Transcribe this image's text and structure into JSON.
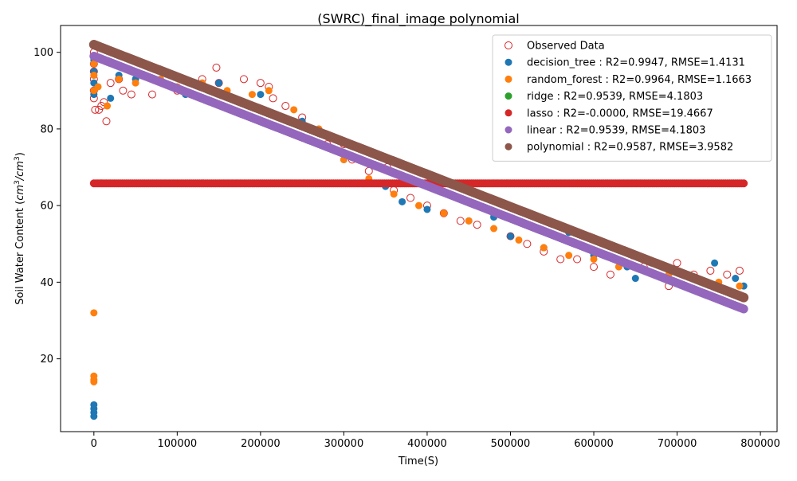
{
  "chart_data": {
    "type": "scatter",
    "title": "(SWRC)_final_image polynomial",
    "xlabel": "Time(S)",
    "ylabel_main": "Soil Water Content (",
    "ylabel_unit": "cm",
    "ylabel_exp1": "3",
    "ylabel_sep": "/",
    "ylabel_unit2": "cm",
    "ylabel_exp2": "3",
    "ylabel_close": ")",
    "xlim": [
      -40000,
      820000
    ],
    "ylim": [
      1,
      107
    ],
    "x_ticks": [
      0,
      100000,
      200000,
      300000,
      400000,
      500000,
      600000,
      700000,
      800000
    ],
    "x_tick_labels": [
      "0",
      "100000",
      "200000",
      "300000",
      "400000",
      "500000",
      "600000",
      "700000",
      "800000"
    ],
    "y_ticks": [
      20,
      40,
      60,
      80,
      100
    ],
    "y_tick_labels": [
      "20",
      "40",
      "60",
      "80",
      "100"
    ],
    "grid": false,
    "legend_position": "top-right",
    "series": [
      {
        "name": "Observed Data",
        "marker": "open-circle",
        "color": "#d62728",
        "points": [
          [
            0,
            102
          ],
          [
            0,
            100
          ],
          [
            0,
            97
          ],
          [
            0,
            95
          ],
          [
            0,
            93
          ],
          [
            0,
            90
          ],
          [
            0,
            88
          ],
          [
            1500,
            85
          ],
          [
            6000,
            85
          ],
          [
            9000,
            86
          ],
          [
            12000,
            87
          ],
          [
            15000,
            82
          ],
          [
            20000,
            92
          ],
          [
            30000,
            93
          ],
          [
            35000,
            90
          ],
          [
            45000,
            89
          ],
          [
            70000,
            89
          ],
          [
            100000,
            90
          ],
          [
            130000,
            93
          ],
          [
            147000,
            96
          ],
          [
            150000,
            92
          ],
          [
            180000,
            93
          ],
          [
            200000,
            92
          ],
          [
            210000,
            91
          ],
          [
            215000,
            88
          ],
          [
            230000,
            86
          ],
          [
            250000,
            83
          ],
          [
            270000,
            79
          ],
          [
            280000,
            76
          ],
          [
            300000,
            76
          ],
          [
            310000,
            72
          ],
          [
            330000,
            69
          ],
          [
            352000,
            70
          ],
          [
            360000,
            64
          ],
          [
            380000,
            62
          ],
          [
            400000,
            60
          ],
          [
            420000,
            58
          ],
          [
            440000,
            56
          ],
          [
            460000,
            55
          ],
          [
            480000,
            58
          ],
          [
            500000,
            52
          ],
          [
            520000,
            50
          ],
          [
            540000,
            48
          ],
          [
            560000,
            46
          ],
          [
            580000,
            46
          ],
          [
            600000,
            44
          ],
          [
            620000,
            42
          ],
          [
            647000,
            47
          ],
          [
            660000,
            44
          ],
          [
            690000,
            39
          ],
          [
            700000,
            45
          ],
          [
            720000,
            42
          ],
          [
            740000,
            43
          ],
          [
            760000,
            42
          ],
          [
            775000,
            43
          ]
        ]
      },
      {
        "name": "decision_tree : R2=0.9947, RMSE=1.4131",
        "marker": "circle",
        "color": "#1f77b4",
        "points": [
          [
            0,
            5
          ],
          [
            0,
            6
          ],
          [
            0,
            7
          ],
          [
            0,
            8
          ],
          [
            0,
            89
          ],
          [
            0,
            92
          ],
          [
            0,
            95
          ],
          [
            0,
            98
          ],
          [
            20000,
            88
          ],
          [
            30000,
            94
          ],
          [
            50000,
            93
          ],
          [
            80000,
            95
          ],
          [
            110000,
            89
          ],
          [
            150000,
            92
          ],
          [
            200000,
            89
          ],
          [
            250000,
            82
          ],
          [
            300000,
            72
          ],
          [
            350000,
            65
          ],
          [
            370000,
            61
          ],
          [
            400000,
            59
          ],
          [
            450000,
            56
          ],
          [
            480000,
            57
          ],
          [
            500000,
            52
          ],
          [
            540000,
            49
          ],
          [
            570000,
            53
          ],
          [
            600000,
            47
          ],
          [
            640000,
            44
          ],
          [
            650000,
            41
          ],
          [
            700000,
            43
          ],
          [
            745000,
            45
          ],
          [
            770000,
            41
          ],
          [
            780000,
            39
          ]
        ]
      },
      {
        "name": "random_forest : R2=0.9964, RMSE=1.1663",
        "marker": "circle",
        "color": "#ff7f0e",
        "points": [
          [
            0,
            32
          ],
          [
            0,
            15.5
          ],
          [
            0,
            14.5
          ],
          [
            0,
            14
          ],
          [
            0,
            90
          ],
          [
            0,
            94
          ],
          [
            0,
            97
          ],
          [
            5000,
            91
          ],
          [
            16000,
            86
          ],
          [
            30000,
            93
          ],
          [
            50000,
            92
          ],
          [
            80000,
            93
          ],
          [
            100000,
            91
          ],
          [
            130000,
            92
          ],
          [
            160000,
            90
          ],
          [
            190000,
            89
          ],
          [
            210000,
            90
          ],
          [
            240000,
            85
          ],
          [
            270000,
            80
          ],
          [
            300000,
            72
          ],
          [
            330000,
            67
          ],
          [
            360000,
            63
          ],
          [
            390000,
            60
          ],
          [
            420000,
            58
          ],
          [
            450000,
            56
          ],
          [
            480000,
            54
          ],
          [
            510000,
            51
          ],
          [
            540000,
            49
          ],
          [
            570000,
            47
          ],
          [
            600000,
            46
          ],
          [
            630000,
            44
          ],
          [
            660000,
            43
          ],
          [
            690000,
            42
          ],
          [
            720000,
            41
          ],
          [
            750000,
            40
          ],
          [
            775000,
            39
          ]
        ]
      },
      {
        "name": "ridge : R2=0.9539, RMSE=4.1803",
        "marker": "circle",
        "color": "#2ca02c",
        "points": [
          [
            0,
            99
          ],
          [
            780000,
            33
          ]
        ]
      },
      {
        "name": "lasso : R2=-0.0000, RMSE=19.4667",
        "marker": "circle",
        "color": "#d62728",
        "points": [
          [
            0,
            65.8
          ],
          [
            780000,
            65.8
          ]
        ]
      },
      {
        "name": "linear : R2=0.9539, RMSE=4.1803",
        "marker": "circle",
        "color": "#9467bd",
        "points": [
          [
            0,
            99
          ],
          [
            780000,
            33
          ]
        ]
      },
      {
        "name": "polynomial : R2=0.9587, RMSE=3.9582",
        "marker": "circle",
        "color": "#8c564b",
        "points": [
          [
            0,
            102
          ],
          [
            780000,
            36
          ]
        ]
      }
    ]
  }
}
